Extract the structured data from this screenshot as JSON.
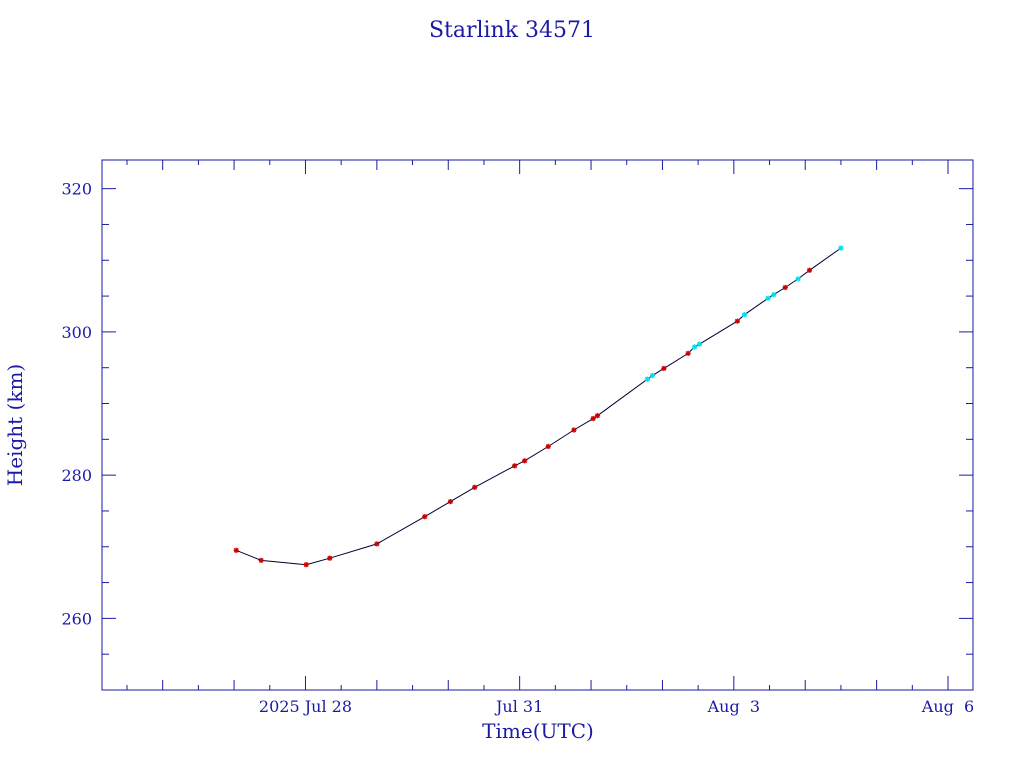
{
  "chart_data": {
    "type": "line",
    "title": "Starlink 34571",
    "xlabel": "Time(UTC)",
    "ylabel": "Height (km)",
    "x_ticks": [
      {
        "label": "2025 Jul 28",
        "day": 28.0
      },
      {
        "label": "Jul 31",
        "day": 31.0
      },
      {
        "label": "Aug  3",
        "day": 34.0
      },
      {
        "label": "Aug  6",
        "day": 37.0
      }
    ],
    "y_ticks": [
      260,
      280,
      300,
      320
    ],
    "x_range_days": [
      25.15,
      37.35
    ],
    "ylim": [
      250,
      324
    ],
    "x_unit": "day of July 2025 (UTC)",
    "colors": {
      "axis": "#1a1aa6",
      "line": "#000033",
      "red_marker": "#cc0000",
      "cyan_marker": "#00e0f0"
    },
    "series": [
      {
        "points": [
          {
            "x": 27.03,
            "y": 269.5,
            "color": "red"
          },
          {
            "x": 27.38,
            "y": 268.1,
            "color": "red"
          },
          {
            "x": 28.01,
            "y": 267.5,
            "color": "red"
          },
          {
            "x": 28.34,
            "y": 268.4,
            "color": "red"
          },
          {
            "x": 29.0,
            "y": 270.4,
            "color": "red"
          },
          {
            "x": 29.67,
            "y": 274.2,
            "color": "red"
          },
          {
            "x": 30.03,
            "y": 276.3,
            "color": "red"
          },
          {
            "x": 30.37,
            "y": 278.3,
            "color": "red"
          },
          {
            "x": 30.93,
            "y": 281.3,
            "color": "red"
          },
          {
            "x": 31.07,
            "y": 282.0,
            "color": "red"
          },
          {
            "x": 31.4,
            "y": 284.0,
            "color": "red"
          },
          {
            "x": 31.76,
            "y": 286.3,
            "color": "red"
          },
          {
            "x": 32.03,
            "y": 287.9,
            "color": "red"
          },
          {
            "x": 32.09,
            "y": 288.3,
            "color": "red"
          },
          {
            "x": 32.79,
            "y": 293.4,
            "color": "cyan"
          },
          {
            "x": 32.86,
            "y": 293.9,
            "color": "cyan"
          },
          {
            "x": 33.02,
            "y": 294.9,
            "color": "red"
          },
          {
            "x": 33.36,
            "y": 297.0,
            "color": "red"
          },
          {
            "x": 33.45,
            "y": 297.9,
            "color": "cyan"
          },
          {
            "x": 33.52,
            "y": 298.3,
            "color": "cyan"
          },
          {
            "x": 34.05,
            "y": 301.5,
            "color": "red"
          },
          {
            "x": 34.15,
            "y": 302.4,
            "color": "cyan"
          },
          {
            "x": 34.48,
            "y": 304.7,
            "color": "cyan"
          },
          {
            "x": 34.56,
            "y": 305.2,
            "color": "cyan"
          },
          {
            "x": 34.72,
            "y": 306.2,
            "color": "red"
          },
          {
            "x": 34.9,
            "y": 307.4,
            "color": "cyan"
          },
          {
            "x": 35.06,
            "y": 308.6,
            "color": "red"
          },
          {
            "x": 35.5,
            "y": 311.7,
            "color": "cyan"
          }
        ]
      }
    ]
  }
}
